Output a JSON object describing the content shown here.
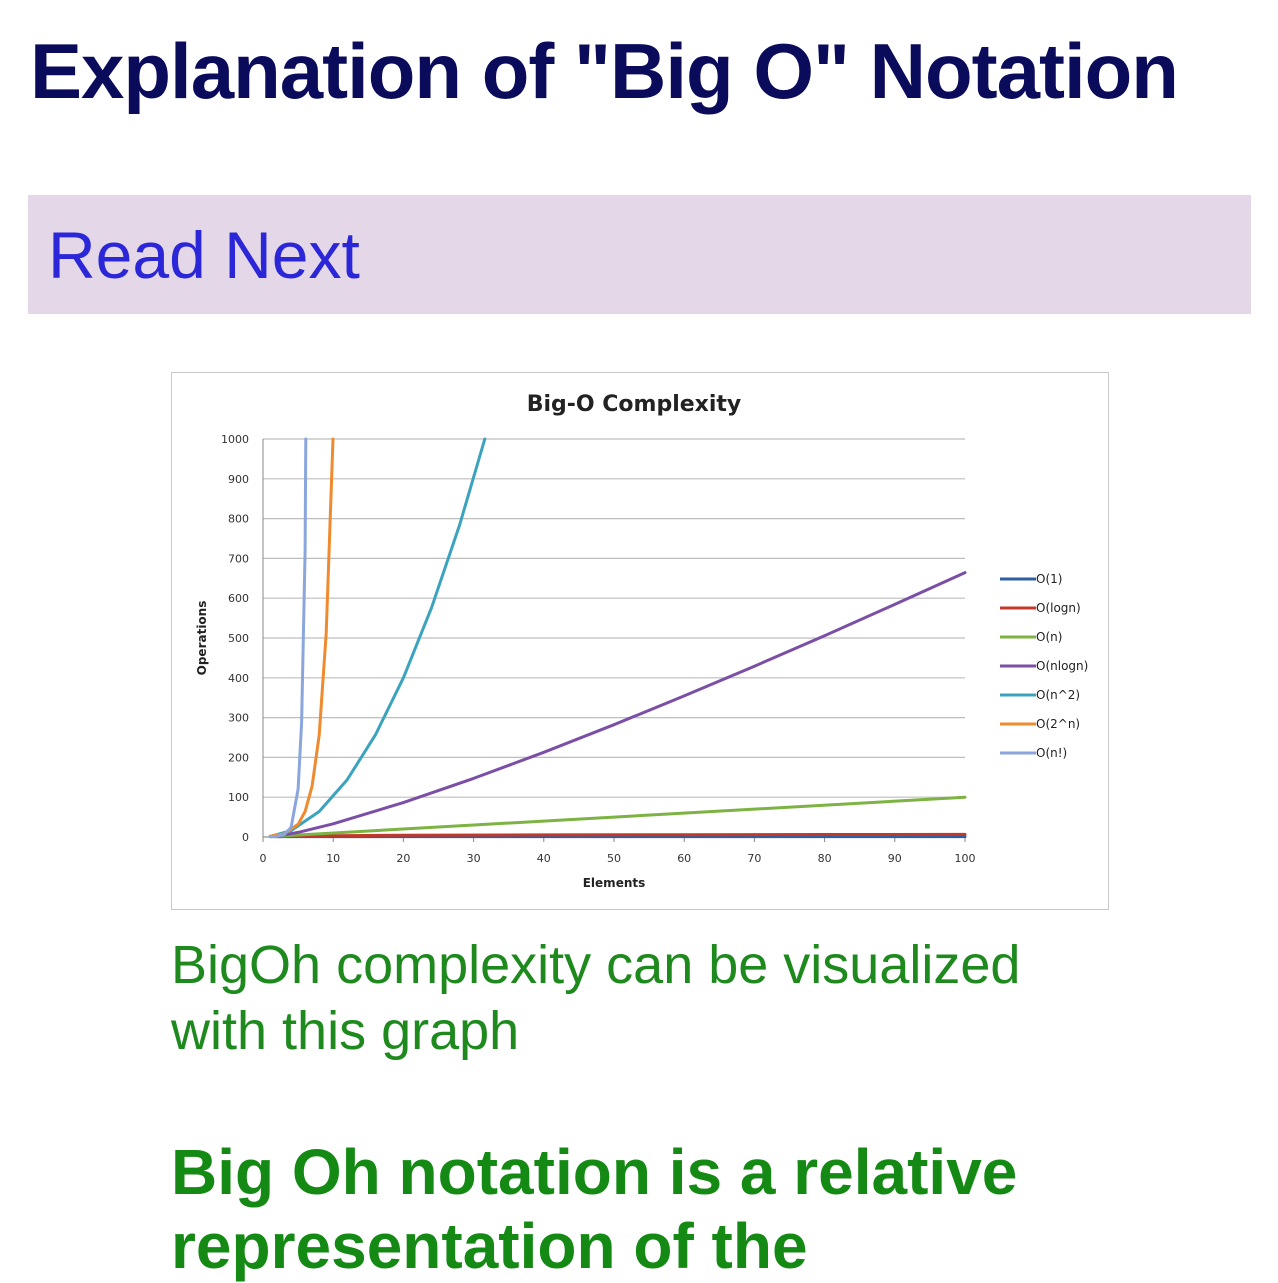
{
  "page": {
    "title": "Explanation of \"Big O\" Notation",
    "read_next_label": "Read Next",
    "caption": "BigOh complexity can be visualized with this graph",
    "subheading": "Big Oh notation is a relative representation of the"
  },
  "chart_data": {
    "type": "line",
    "title": "Big-O Complexity",
    "xlabel": "Elements",
    "ylabel": "Operations",
    "xlim": [
      0,
      100
    ],
    "ylim": [
      0,
      1000
    ],
    "x_ticks": [
      0,
      10,
      20,
      30,
      40,
      50,
      60,
      70,
      80,
      90,
      100
    ],
    "y_ticks": [
      0,
      100,
      200,
      300,
      400,
      500,
      600,
      700,
      800,
      900,
      1000
    ],
    "grid": "horizontal",
    "legend_position": "right",
    "series": [
      {
        "name": "O(1)",
        "color": "#2e5fa3",
        "x": [
          1,
          100
        ],
        "y": [
          1,
          1
        ]
      },
      {
        "name": "O(logn)",
        "color": "#c0392b",
        "x": [
          2,
          10,
          20,
          40,
          60,
          80,
          100
        ],
        "y": [
          1,
          3.3,
          4.3,
          5.3,
          5.9,
          6.3,
          6.6
        ]
      },
      {
        "name": "O(n)",
        "color": "#7cb342",
        "x": [
          1,
          100
        ],
        "y": [
          1,
          100
        ]
      },
      {
        "name": "O(nlogn)",
        "color": "#7b4fa6",
        "x": [
          2,
          5,
          10,
          20,
          30,
          40,
          50,
          60,
          70,
          80,
          90,
          100
        ],
        "y": [
          2,
          11.6,
          33.2,
          86.4,
          147.2,
          212.9,
          282.2,
          354.4,
          429.1,
          505.8,
          584.3,
          664.4
        ]
      },
      {
        "name": "O(n^2)",
        "color": "#3ba3bd",
        "x": [
          1,
          4,
          8,
          12,
          16,
          20,
          24,
          28,
          31.6
        ],
        "y": [
          1,
          16,
          64,
          144,
          256,
          400,
          576,
          784,
          1000
        ]
      },
      {
        "name": "O(2^n)",
        "color": "#ef8a2e",
        "x": [
          1,
          3,
          5,
          6,
          7,
          8,
          9,
          9.97
        ],
        "y": [
          2,
          8,
          32,
          64,
          128,
          256,
          512,
          1000
        ]
      },
      {
        "name": "O(n!)",
        "color": "#8aa6dc",
        "x": [
          1,
          2,
          3,
          4,
          5,
          5.5,
          6,
          6.1
        ],
        "y": [
          1,
          2,
          6,
          24,
          120,
          287,
          720,
          1000
        ]
      }
    ]
  }
}
